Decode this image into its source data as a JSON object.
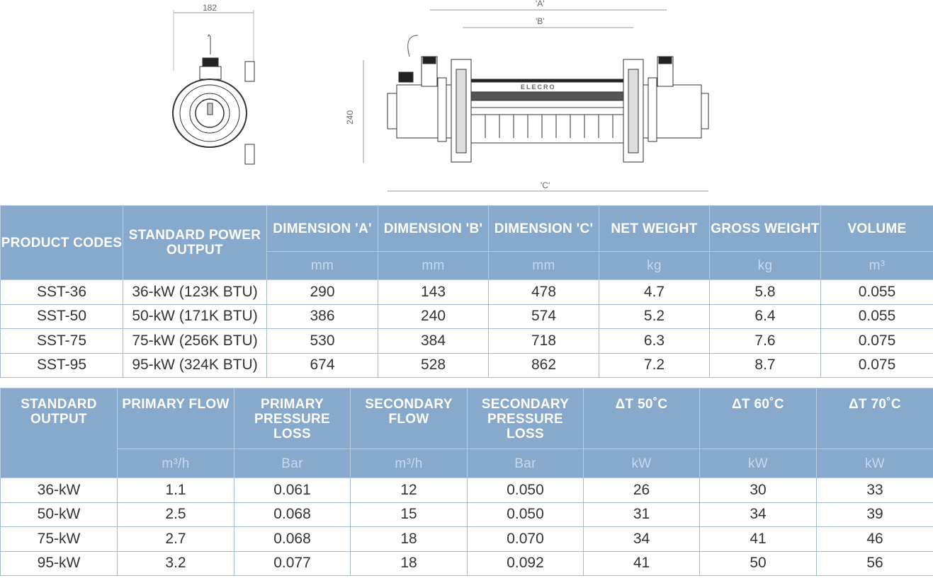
{
  "drawing": {
    "side_width": "182",
    "height": "240",
    "dim_a": "'A'",
    "dim_b": "'B'",
    "dim_c": "'C'",
    "brand": "ELECRO"
  },
  "table1": {
    "headers": [
      "PRODUCT CODES",
      "STANDARD POWER OUTPUT",
      "DIMENSION 'A'",
      "DIMENSION 'B'",
      "DIMENSION 'C'",
      "NET WEIGHT",
      "GROSS WEIGHT",
      "VOLUME"
    ],
    "units": [
      "mm",
      "mm",
      "mm",
      "kg",
      "kg",
      "m³"
    ],
    "rows": [
      [
        "SST-36",
        "36-kW (123K BTU)",
        "290",
        "143",
        "478",
        "4.7",
        "5.8",
        "0.055"
      ],
      [
        "SST-50",
        "50-kW (171K BTU)",
        "386",
        "240",
        "574",
        "5.2",
        "6.4",
        "0.055"
      ],
      [
        "SST-75",
        "75-kW (256K BTU)",
        "530",
        "384",
        "718",
        "6.3",
        "7.6",
        "0.075"
      ],
      [
        "SST-95",
        "95-kW (324K BTU)",
        "674",
        "528",
        "862",
        "7.2",
        "8.7",
        "0.075"
      ]
    ]
  },
  "table2": {
    "headers": [
      "STANDARD OUTPUT",
      "PRIMARY FLOW",
      "PRIMARY PRESSURE LOSS",
      "SECONDARY FLOW",
      "SECONDARY PRESSURE LOSS",
      "ΔT 50˚C",
      "ΔT 60˚C",
      "ΔT 70˚C"
    ],
    "units": [
      "m³/h",
      "Bar",
      "m³/h",
      "Bar",
      "kW",
      "kW",
      "kW"
    ],
    "rows": [
      [
        "36-kW",
        "1.1",
        "0.061",
        "12",
        "0.050",
        "26",
        "30",
        "33"
      ],
      [
        "50-kW",
        "2.5",
        "0.068",
        "15",
        "0.050",
        "31",
        "34",
        "39"
      ],
      [
        "75-kW",
        "2.7",
        "0.068",
        "18",
        "0.070",
        "34",
        "41",
        "46"
      ],
      [
        "95-kW",
        "3.2",
        "0.077",
        "18",
        "0.092",
        "41",
        "50",
        "56"
      ]
    ]
  }
}
